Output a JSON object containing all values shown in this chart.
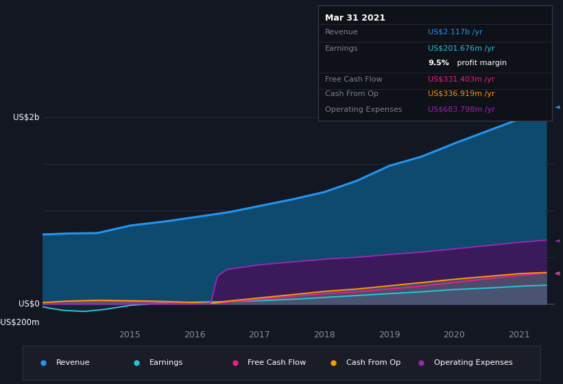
{
  "bg_color": "#131722",
  "plot_bg_color": "#131722",
  "colors": {
    "revenue": "#2196f3",
    "revenue_fill": "#0d4a6e",
    "earnings": "#26c6da",
    "free_cash_flow": "#e91e8c",
    "cash_from_op": "#ff9800",
    "operating_expenses": "#9c27b0",
    "op_exp_fill": "#3a1a5a",
    "cash_fill": "#556070"
  },
  "legend_items": [
    {
      "label": "Revenue",
      "color": "#2196f3"
    },
    {
      "label": "Earnings",
      "color": "#26c6da"
    },
    {
      "label": "Free Cash Flow",
      "color": "#e91e8c"
    },
    {
      "label": "Cash From Op",
      "color": "#ff9800"
    },
    {
      "label": "Operating Expenses",
      "color": "#9c27b0"
    }
  ],
  "ylabel_top": "US$2b",
  "ylabel_zero": "US$0",
  "ylabel_neg": "-US$200m",
  "xtick_vals": [
    2015,
    2016,
    2017,
    2018,
    2019,
    2020,
    2021
  ],
  "info_title": "Mar 31 2021",
  "info_rows": [
    {
      "label": "Revenue",
      "value": "US$2.117b /yr",
      "color": "#2196f3"
    },
    {
      "label": "Earnings",
      "value": "US$201.676m /yr",
      "color": "#26c6da"
    },
    {
      "label": "",
      "value": "",
      "color": ""
    },
    {
      "label": "Free Cash Flow",
      "value": "US$331.403m /yr",
      "color": "#e91e8c"
    },
    {
      "label": "Cash From Op",
      "value": "US$336.919m /yr",
      "color": "#ff9800"
    },
    {
      "label": "Operating Expenses",
      "value": "US$683.798m /yr",
      "color": "#9c27b0"
    }
  ]
}
